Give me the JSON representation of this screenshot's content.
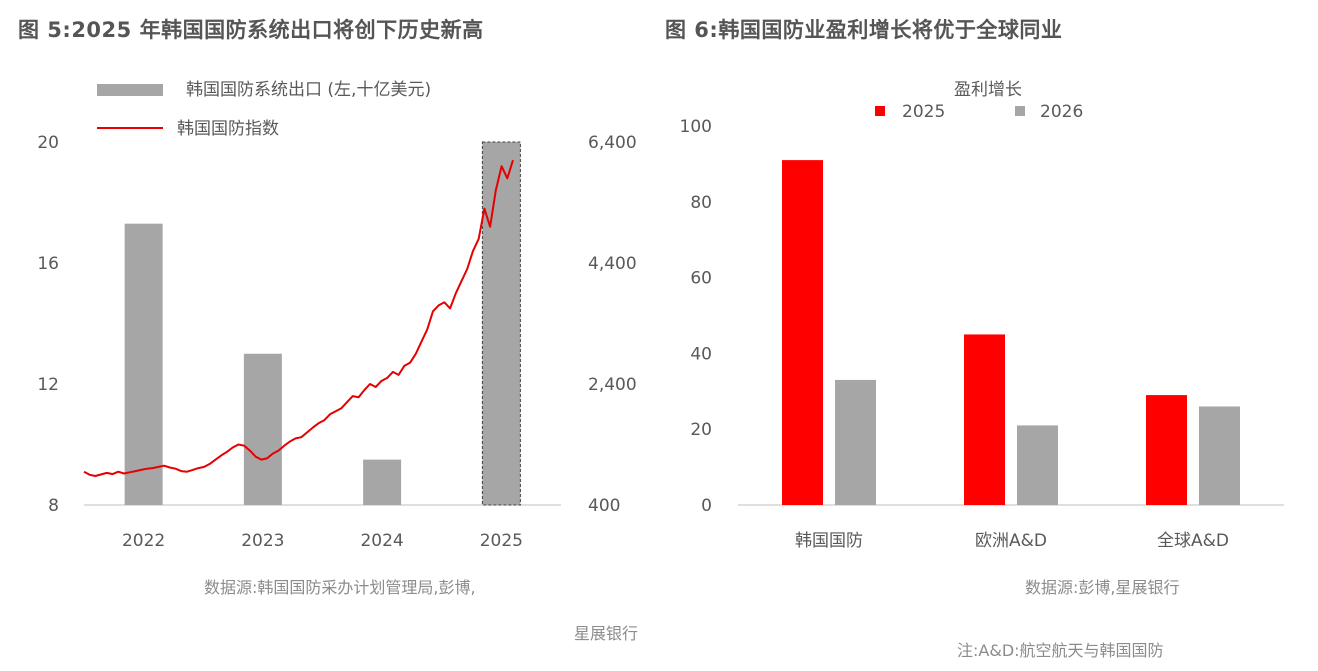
{
  "figure1": {
    "title": "图 5:2025 年韩国国防系统出口将创下历史新高",
    "source_line1": "数据源:韩国国防采办计划管理局,彭博,",
    "source_line2": "星展银行"
  },
  "figure2": {
    "title": "图 6:韩国国防业盈利增长将优于全球同业",
    "source": "数据源:彭博,星展银行",
    "note": "注:A&D:航空航天与韩国国防"
  },
  "chart_data": [
    {
      "type": "bar+line",
      "title": "图 5:2025 年韩国国防系统出口将创下历史新高",
      "categories": [
        "2022",
        "2023",
        "2024",
        "2025"
      ],
      "y_left": {
        "min": 8,
        "max": 20,
        "ticks": [
          "8",
          "12",
          "16",
          "20"
        ]
      },
      "y_right": {
        "min": 400,
        "max": 6400,
        "ticks": [
          "400",
          "2,400",
          "4,400",
          "6,400"
        ]
      },
      "bar_series": {
        "name": "韩国国防系统出口 (左,十亿美元)",
        "color": "#a6a6a6",
        "values": [
          17.3,
          13.0,
          9.5,
          20.0
        ]
      },
      "line_series": {
        "name": "韩国国防指数",
        "color": "#e60000",
        "x_start": "2021-06",
        "x_end": "2025-06",
        "values": [
          950,
          900,
          880,
          905,
          930,
          910,
          950,
          920,
          940,
          960,
          980,
          1000,
          1010,
          1030,
          1050,
          1020,
          1000,
          960,
          950,
          980,
          1010,
          1030,
          1080,
          1150,
          1220,
          1280,
          1350,
          1400,
          1380,
          1300,
          1200,
          1150,
          1170,
          1250,
          1300,
          1380,
          1450,
          1500,
          1520,
          1600,
          1680,
          1750,
          1800,
          1900,
          1950,
          2000,
          2100,
          2200,
          2180,
          2300,
          2400,
          2350,
          2450,
          2500,
          2600,
          2550,
          2700,
          2750,
          2900,
          3100,
          3300,
          3600,
          3700,
          3750,
          3650,
          3900,
          4100,
          4300,
          4600,
          4800,
          5300,
          5000,
          5600,
          6000,
          5800,
          6100
        ]
      },
      "legend_position": "top"
    },
    {
      "type": "bar",
      "title": "图 6:韩国国防业盈利增长将优于全球同业",
      "legend_title": "盈利增长",
      "categories": [
        "韩国国防",
        "欧洲A&D",
        "全球A&D"
      ],
      "y": {
        "min": 0,
        "max": 100,
        "ticks": [
          "0",
          "20",
          "40",
          "60",
          "80",
          "100"
        ]
      },
      "series": [
        {
          "name": "2025",
          "color": "#ff0000",
          "values": [
            91,
            45,
            29
          ]
        },
        {
          "name": "2026",
          "color": "#a6a6a6",
          "values": [
            33,
            21,
            26
          ]
        }
      ],
      "legend_position": "top"
    }
  ]
}
